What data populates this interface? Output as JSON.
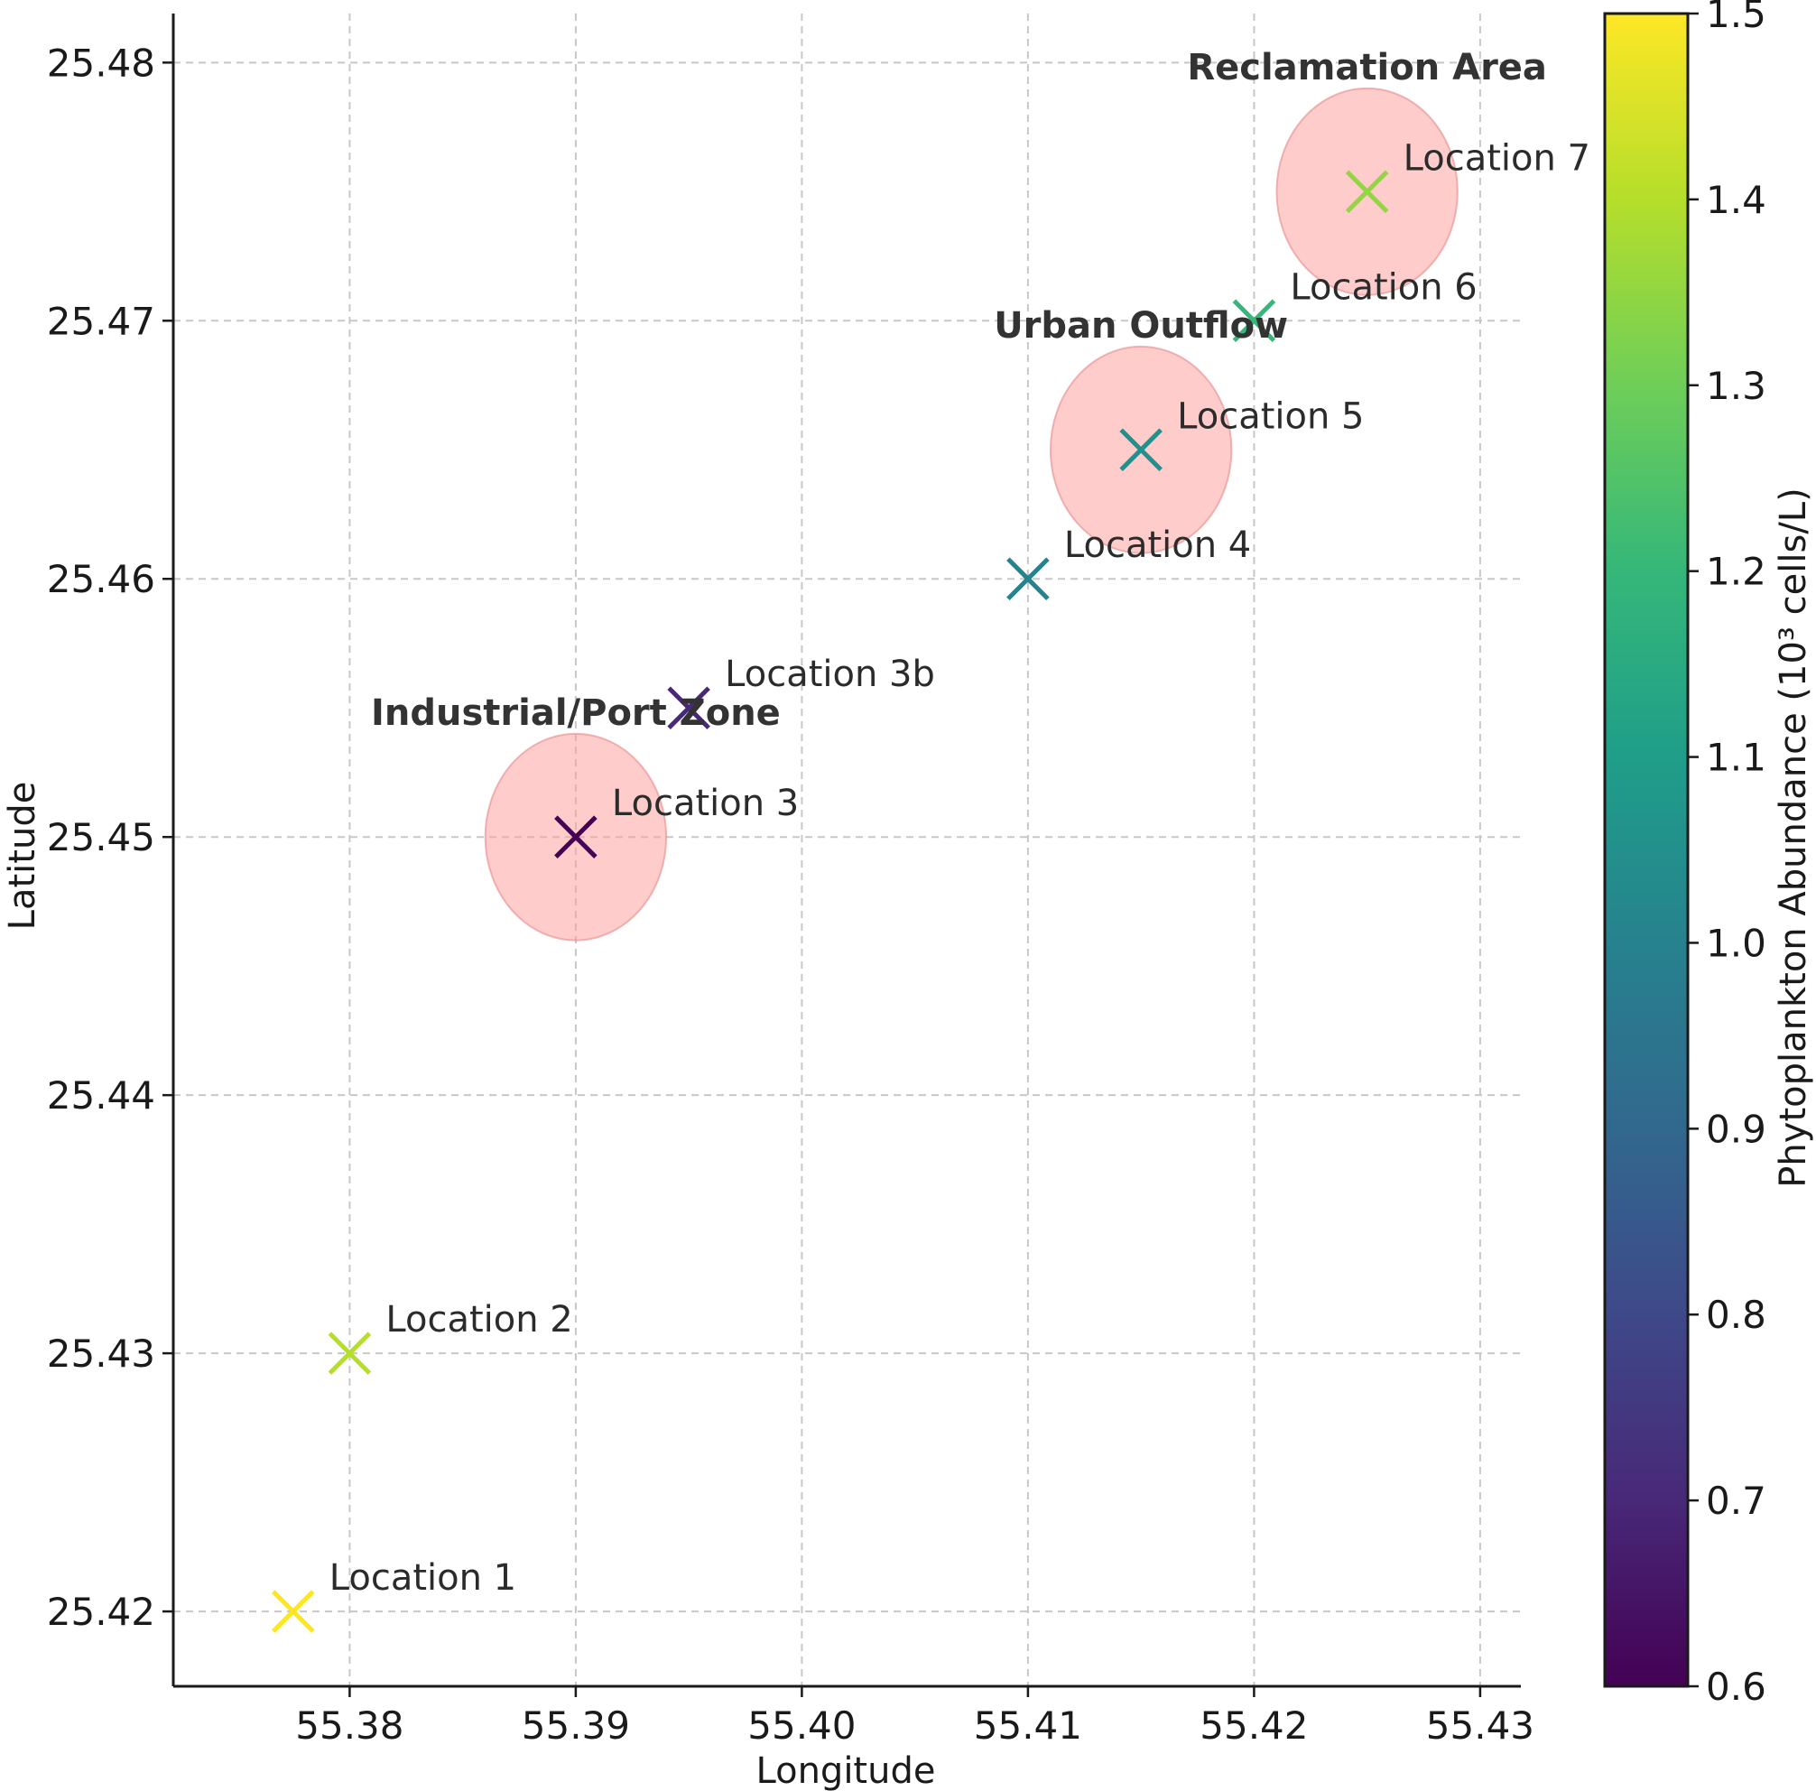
{
  "chart_data": {
    "type": "scatter",
    "title": "",
    "xlabel": "Longitude",
    "ylabel": "Latitude",
    "xlim": [
      55.3722,
      55.4318
    ],
    "ylim": [
      25.4171,
      25.4819
    ],
    "xticks": [
      "55.38",
      "55.39",
      "55.40",
      "55.41",
      "55.42",
      "55.43"
    ],
    "xtick_values": [
      55.38,
      55.39,
      55.4,
      55.41,
      55.42,
      55.43
    ],
    "yticks": [
      "25.42",
      "25.43",
      "25.44",
      "25.45",
      "25.46",
      "25.47",
      "25.48"
    ],
    "ytick_values": [
      25.42,
      25.43,
      25.44,
      25.45,
      25.46,
      25.47,
      25.48
    ],
    "grid": true,
    "marker": "x",
    "points": [
      {
        "label": "Location 1",
        "lon": 55.3775,
        "lat": 25.42,
        "abundance": 1.5
      },
      {
        "label": "Location 2",
        "lon": 55.38,
        "lat": 25.43,
        "abundance": 1.4
      },
      {
        "label": "Location 3",
        "lon": 55.39,
        "lat": 25.45,
        "abundance": 0.6
      },
      {
        "label": "Location 3b",
        "lon": 55.395,
        "lat": 25.455,
        "abundance": 0.7
      },
      {
        "label": "Location 4",
        "lon": 55.41,
        "lat": 25.46,
        "abundance": 1.0
      },
      {
        "label": "Location 5",
        "lon": 55.415,
        "lat": 25.465,
        "abundance": 1.05
      },
      {
        "label": "Location 6",
        "lon": 55.42,
        "lat": 25.47,
        "abundance": 1.2
      },
      {
        "label": "Location 7",
        "lon": 55.425,
        "lat": 25.475,
        "abundance": 1.35
      }
    ],
    "zones": [
      {
        "label": "Industrial/Port Zone",
        "lon": 55.39,
        "lat": 25.45,
        "radius_deg": 0.004,
        "color": "#ff9a9a"
      },
      {
        "label": "Urban Outflow",
        "lon": 55.415,
        "lat": 25.465,
        "radius_deg": 0.004,
        "color": "#ff9a9a"
      },
      {
        "label": "Reclamation Area",
        "lon": 55.425,
        "lat": 25.475,
        "radius_deg": 0.004,
        "color": "#ff9a9a"
      }
    ],
    "colorbar": {
      "label": "Phytoplankton Abundance (10³ cells/L)",
      "colormap": "viridis",
      "range": [
        0.6,
        1.5
      ],
      "ticks": [
        "0.6",
        "0.7",
        "0.8",
        "0.9",
        "1.0",
        "1.1",
        "1.2",
        "1.3",
        "1.4",
        "1.5"
      ],
      "tick_values": [
        0.6,
        0.7,
        0.8,
        0.9,
        1.0,
        1.1,
        1.2,
        1.3,
        1.4,
        1.5
      ],
      "stops": [
        "#440154",
        "#482878",
        "#3e4989",
        "#31688e",
        "#26828e",
        "#1f9e89",
        "#35b779",
        "#6ece58",
        "#b5de2b",
        "#fde725"
      ]
    }
  }
}
